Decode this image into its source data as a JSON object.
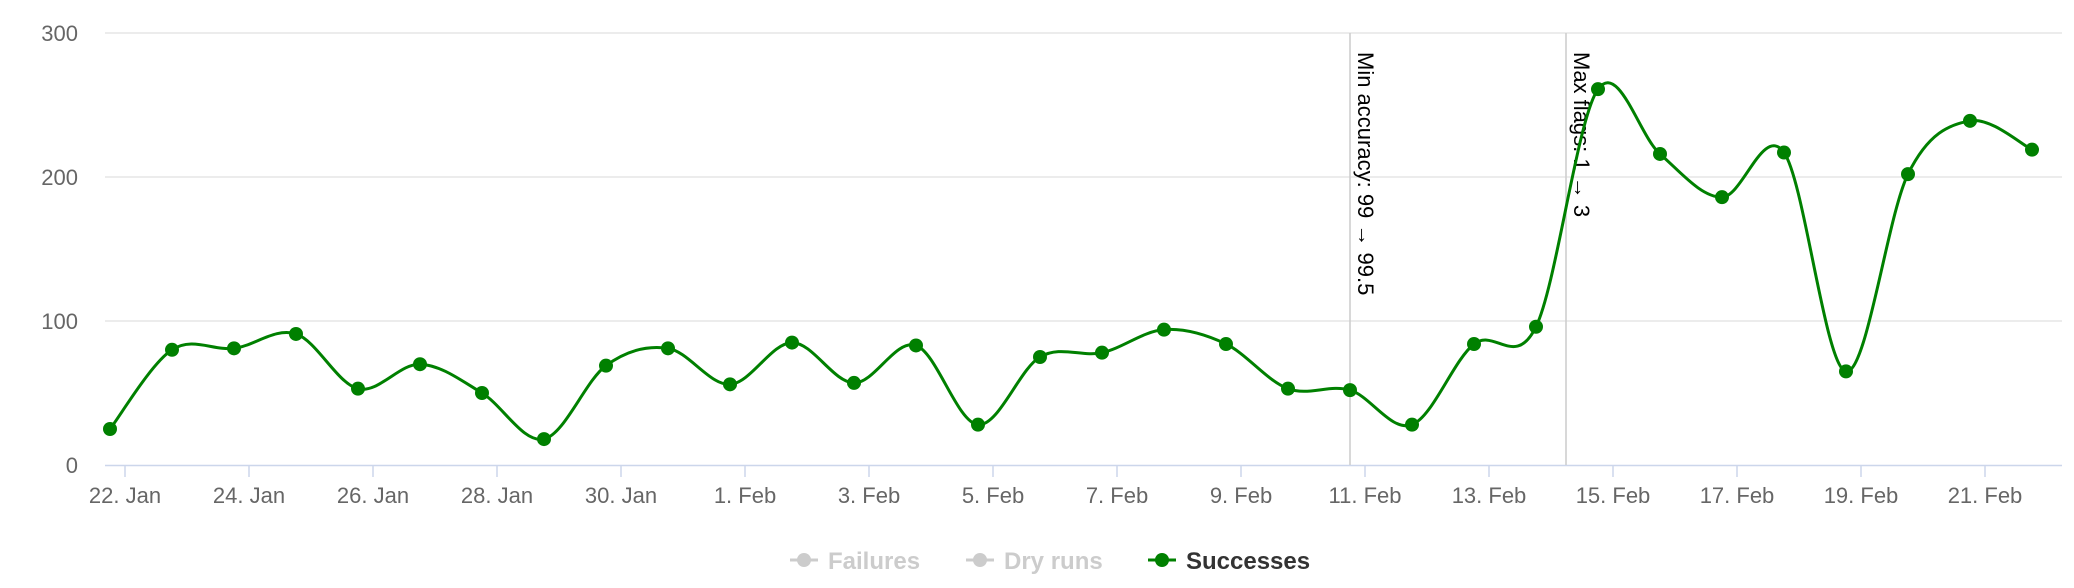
{
  "chart_data": {
    "type": "line",
    "x_type": "date",
    "x_tick_labels": [
      "22. Jan",
      "24. Jan",
      "26. Jan",
      "28. Jan",
      "30. Jan",
      "1. Feb",
      "3. Feb",
      "5. Feb",
      "7. Feb",
      "9. Feb",
      "11. Feb",
      "13. Feb",
      "15. Feb",
      "17. Feb",
      "19. Feb",
      "21. Feb"
    ],
    "y_tick_labels": [
      "0",
      "100",
      "200",
      "300"
    ],
    "ylim": [
      0,
      300
    ],
    "grid": "horizontal",
    "legend_position": "bottom-center",
    "series": [
      {
        "name": "Failures",
        "visible": false,
        "color": "#cccccc",
        "values": []
      },
      {
        "name": "Dry runs",
        "visible": false,
        "color": "#cccccc",
        "values": []
      },
      {
        "name": "Successes",
        "visible": true,
        "color": "#008000",
        "points": [
          {
            "x": "2024-01-22",
            "y": 25
          },
          {
            "x": "2024-01-23",
            "y": 80
          },
          {
            "x": "2024-01-24",
            "y": 81
          },
          {
            "x": "2024-01-25",
            "y": 91
          },
          {
            "x": "2024-01-26",
            "y": 53
          },
          {
            "x": "2024-01-27",
            "y": 70
          },
          {
            "x": "2024-01-28",
            "y": 50
          },
          {
            "x": "2024-01-29",
            "y": 18
          },
          {
            "x": "2024-01-30",
            "y": 69
          },
          {
            "x": "2024-01-31",
            "y": 81
          },
          {
            "x": "2024-02-01",
            "y": 56
          },
          {
            "x": "2024-02-02",
            "y": 85
          },
          {
            "x": "2024-02-03",
            "y": 57
          },
          {
            "x": "2024-02-04",
            "y": 83
          },
          {
            "x": "2024-02-05",
            "y": 28
          },
          {
            "x": "2024-02-06",
            "y": 75
          },
          {
            "x": "2024-02-07",
            "y": 78
          },
          {
            "x": "2024-02-08",
            "y": 94
          },
          {
            "x": "2024-02-09",
            "y": 84
          },
          {
            "x": "2024-02-10",
            "y": 53
          },
          {
            "x": "2024-02-11",
            "y": 52
          },
          {
            "x": "2024-02-12",
            "y": 28
          },
          {
            "x": "2024-02-13",
            "y": 84
          },
          {
            "x": "2024-02-14",
            "y": 96
          },
          {
            "x": "2024-02-15",
            "y": 261
          },
          {
            "x": "2024-02-16",
            "y": 216
          },
          {
            "x": "2024-02-17",
            "y": 186
          },
          {
            "x": "2024-02-18",
            "y": 217
          },
          {
            "x": "2024-02-19",
            "y": 65
          },
          {
            "x": "2024-02-20",
            "y": 202
          },
          {
            "x": "2024-02-21",
            "y": 239
          },
          {
            "x": "2024-02-22",
            "y": 219
          }
        ]
      }
    ],
    "plot_lines": [
      {
        "x": "2024-02-11",
        "label": "Min accuracy: 99 → 99.5",
        "color": "#cccccc"
      },
      {
        "x": "2024-02-14",
        "label": "Max flags: 1 → 3",
        "color": "#cccccc"
      }
    ]
  }
}
